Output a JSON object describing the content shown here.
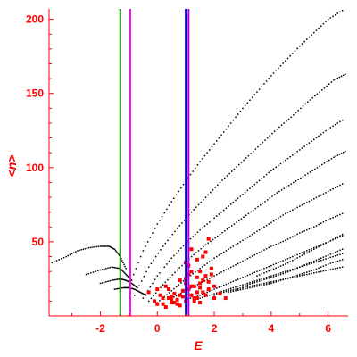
{
  "chart_data": {
    "type": "scatter",
    "xlabel": "E",
    "ylabel": "<n>",
    "xlim": [
      -3.8,
      6.7
    ],
    "ylim": [
      0,
      207
    ],
    "x_ticks": [
      -2,
      0,
      2,
      4,
      6
    ],
    "x_tick_labels": [
      "-2",
      "0",
      "2",
      "4",
      "6"
    ],
    "y_ticks": [
      50,
      100,
      150,
      200
    ],
    "y_tick_labels": [
      "50",
      "100",
      "150",
      "200"
    ],
    "grid": false,
    "axis_color": "#ff0000",
    "vertical_lines": [
      {
        "x": -1.3,
        "color": "#008000"
      },
      {
        "x": -0.95,
        "color": "#ff00ff"
      },
      {
        "x": 1.0,
        "color": "#0000ff"
      },
      {
        "x": 1.1,
        "color": "#a000ff"
      }
    ],
    "dot_series": [
      {
        "color": "#000000",
        "x": [
          -3.7,
          -3.2,
          -2.8,
          -2.4,
          -2.0,
          -1.7,
          -1.5,
          -1.3,
          -1.1
        ],
        "y": [
          36,
          40,
          44,
          46,
          47,
          47,
          45,
          40,
          32
        ]
      },
      {
        "color": "#000000",
        "x": [
          -2.5,
          -2.0,
          -1.6,
          -1.3,
          -1.1,
          -0.9
        ],
        "y": [
          28,
          31,
          33,
          32,
          28,
          24
        ]
      },
      {
        "color": "#000000",
        "x": [
          -2.0,
          -1.6,
          -1.3,
          -1.1,
          -0.9,
          -0.7
        ],
        "y": [
          22,
          24,
          25,
          24,
          22,
          19
        ]
      },
      {
        "color": "#000000",
        "x": [
          -1.5,
          -1.2,
          -1.0,
          -0.8,
          -0.6,
          -0.4
        ],
        "y": [
          18,
          19,
          19,
          18,
          16,
          14
        ]
      },
      {
        "color": "#000000",
        "x": [
          -1.0,
          -0.5,
          0.0,
          0.5,
          1.0,
          1.5,
          2.0,
          2.5,
          3.0,
          3.5,
          4.0,
          4.5,
          5.0,
          5.5,
          6.0,
          6.5
        ],
        "y": [
          20,
          44,
          62,
          77,
          91,
          104,
          116,
          128,
          140,
          151,
          162,
          172,
          182,
          191,
          200,
          206
        ]
      },
      {
        "color": "#000000",
        "x": [
          -0.8,
          -0.3,
          0.2,
          0.7,
          1.2,
          1.7,
          2.2,
          2.7,
          3.2,
          3.7,
          4.2,
          4.7,
          5.2,
          5.7,
          6.2,
          6.6
        ],
        "y": [
          14,
          33,
          47,
          59,
          70,
          80,
          90,
          99,
          108,
          117,
          126,
          134,
          143,
          151,
          159,
          163
        ]
      },
      {
        "color": "#000000",
        "x": [
          -0.5,
          0.0,
          0.5,
          1.0,
          1.5,
          2.0,
          2.5,
          3.0,
          3.5,
          4.0,
          4.5,
          5.0,
          5.5,
          6.0,
          6.5
        ],
        "y": [
          12,
          27,
          39,
          49,
          58,
          66,
          74,
          82,
          90,
          98,
          105,
          112,
          119,
          126,
          132
        ]
      },
      {
        "color": "#000000",
        "x": [
          -0.3,
          0.2,
          0.7,
          1.2,
          1.7,
          2.2,
          2.7,
          3.2,
          3.7,
          4.2,
          4.7,
          5.2,
          5.7,
          6.2,
          6.6
        ],
        "y": [
          10,
          21,
          31,
          40,
          48,
          55,
          62,
          69,
          76,
          83,
          89,
          95,
          101,
          107,
          111
        ]
      },
      {
        "color": "#000000",
        "x": [
          0.0,
          0.5,
          1.0,
          1.5,
          2.0,
          2.5,
          3.0,
          3.5,
          4.0,
          4.5,
          5.0,
          5.5,
          6.0,
          6.5
        ],
        "y": [
          9,
          17,
          25,
          32,
          39,
          45,
          51,
          57,
          63,
          69,
          74,
          79,
          84,
          89
        ]
      },
      {
        "color": "#000000",
        "x": [
          0.5,
          1.0,
          1.5,
          2.0,
          2.5,
          3.0,
          3.5,
          4.0,
          4.5,
          5.0,
          5.5,
          6.0,
          6.5
        ],
        "y": [
          12,
          17,
          22,
          27,
          32,
          37,
          42,
          47,
          51,
          56,
          60,
          65,
          69
        ]
      },
      {
        "color": "#000000",
        "x": [
          1.0,
          1.5,
          2.0,
          2.5,
          3.0,
          3.5,
          4.0,
          4.5,
          5.0,
          5.5,
          6.0,
          6.5
        ],
        "y": [
          11,
          14,
          18,
          22,
          26,
          30,
          34,
          38,
          42,
          46,
          50,
          54
        ]
      },
      {
        "color": "#000000",
        "x": [
          1.5,
          2.0,
          2.5,
          3.0,
          3.5,
          4.0,
          4.5,
          5.0,
          5.5,
          6.0,
          6.5
        ],
        "y": [
          12,
          15,
          18,
          21,
          24,
          27,
          30,
          33,
          36,
          39,
          42
        ]
      },
      {
        "color": "#000000",
        "x": [
          2.0,
          2.5,
          3.0,
          3.5,
          4.0,
          4.5,
          5.0,
          5.5,
          6.0,
          6.5
        ],
        "y": [
          14,
          17,
          19,
          21,
          23,
          25,
          27,
          29,
          31,
          33
        ]
      },
      {
        "color": "#000000",
        "x": [
          2.5,
          3.0,
          3.5,
          4.0,
          4.5,
          5.0,
          5.5,
          6.0,
          6.5
        ],
        "y": [
          16,
          18,
          20,
          22,
          25,
          28,
          31,
          35,
          38
        ]
      },
      {
        "color": "#000000",
        "x": [
          3.0,
          3.5,
          4.0,
          4.5,
          5.0,
          5.5,
          6.0,
          6.5
        ],
        "y": [
          20,
          23,
          26,
          29,
          33,
          37,
          41,
          45
        ]
      },
      {
        "color": "#000000",
        "x": [
          3.5,
          4.0,
          4.5,
          5.0,
          5.5,
          6.0,
          6.5
        ],
        "y": [
          27,
          31,
          35,
          40,
          45,
          50,
          55
        ]
      }
    ],
    "red_cluster": {
      "color": "#ff0000",
      "x": [
        -0.3,
        -0.1,
        0.0,
        0.1,
        0.2,
        0.3,
        0.4,
        0.5,
        0.6,
        0.7,
        0.8,
        0.9,
        1.0,
        1.0,
        1.1,
        1.1,
        1.2,
        1.2,
        1.3,
        1.3,
        1.4,
        1.4,
        1.5,
        1.5,
        1.6,
        1.7,
        1.8,
        1.9,
        2.0,
        2.2,
        0.3,
        0.5,
        0.7,
        0.9,
        1.1,
        1.3,
        1.5,
        1.7,
        0.2,
        0.4,
        0.6,
        0.8,
        1.0,
        1.2,
        1.4,
        1.6,
        1.8,
        0.0,
        0.5,
        1.0,
        1.5,
        2.0,
        2.4,
        1.2,
        1.6,
        1.8,
        1.4,
        1.7,
        0.8,
        1.9
      ],
      "y": [
        16,
        10,
        18,
        14,
        8,
        20,
        12,
        9,
        15,
        11,
        7,
        13,
        10,
        22,
        18,
        28,
        14,
        30,
        20,
        12,
        26,
        16,
        9,
        19,
        24,
        14,
        18,
        32,
        12,
        15,
        6,
        11,
        8,
        17,
        34,
        10,
        22,
        27,
        12,
        18,
        9,
        14,
        25,
        20,
        12,
        16,
        23,
        8,
        13,
        36,
        30,
        20,
        12,
        45,
        40,
        52,
        38,
        43,
        24,
        28
      ]
    }
  }
}
